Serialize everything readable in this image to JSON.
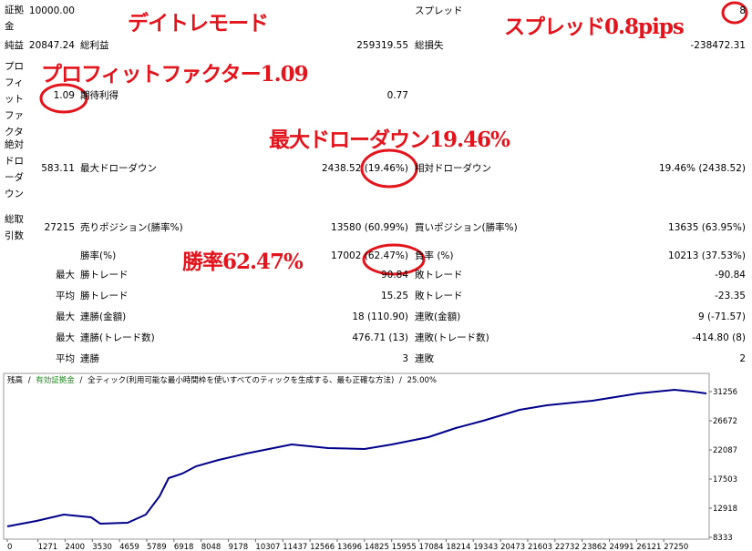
{
  "report": {
    "rows": [
      {
        "cells": [
          "証拠金",
          "10000.00",
          null,
          null,
          "スプレッド",
          "8"
        ]
      },
      {
        "cells": [
          "純益",
          "20847.24",
          "総利益",
          "259319.55",
          "総損失",
          "-238472.31"
        ]
      },
      {
        "cells": [
          "プロフィットファクタ",
          "1.09",
          "期待利得",
          "0.77",
          null,
          null
        ]
      },
      {
        "cells": [
          "絶対ドローダウン",
          "583.11",
          "最大ドローダウン",
          "2438.52 (19.46%)",
          "相対ドローダウン",
          "19.46% (2438.52)"
        ]
      },
      {
        "cells": [
          "総取引数",
          "27215",
          "売りポジション(勝率%)",
          "13580 (60.99%)",
          "買いポジション(勝率%)",
          "13635 (63.95%)"
        ]
      },
      {
        "cells": [
          null,
          null,
          "勝率(%)",
          "17002 (62.47%)",
          "負率 (%)",
          "10213 (37.53%)"
        ]
      },
      {
        "cells": [
          null,
          "最大",
          "勝トレード",
          "90.84",
          "敗トレード",
          "-90.84"
        ]
      },
      {
        "cells": [
          null,
          "平均",
          "勝トレード",
          "15.25",
          "敗トレード",
          "-23.35"
        ]
      },
      {
        "cells": [
          null,
          "最大",
          "連勝(金額)",
          "18 (110.90)",
          "連敗(金額)",
          "9 (-71.57)"
        ]
      },
      {
        "cells": [
          null,
          "最大",
          "連勝(トレード数)",
          "476.71 (13)",
          "連敗(トレード数)",
          "-414.80 (8)"
        ]
      },
      {
        "cells": [
          null,
          "平均",
          "連勝",
          "3",
          "連敗",
          "2"
        ]
      }
    ]
  },
  "annotations": [
    "デイトレモード",
    "スプレッド0.8pips",
    "プロフィットファクター1.09",
    "最大ドローダウン19.46%",
    "勝率62.47%"
  ],
  "chart_data": {
    "type": "line",
    "separator": "/",
    "equity_label": "有効証拠金",
    "mode": "全ティック(利用可能な最小時間枠を使いすべてのティックを生成する、最も正確な方法)",
    "percent": "25.00%",
    "x": [
      0,
      1211,
      2346,
      3481,
      3859,
      4994,
      5751,
      6319,
      6697,
      7264,
      7832,
      8778,
      9913,
      11048,
      11805,
      13318,
      14832,
      15967,
      17480,
      18615,
      19750,
      21264,
      22398,
      24290,
      26182,
      27696,
      28453,
      29020
    ],
    "series": [
      {
        "name": "残高",
        "color": "#00008b",
        "values": [
          10052,
          10912,
          11915,
          11485,
          10482,
          10625,
          11915,
          14780,
          17646,
          18362,
          19508,
          20511,
          21514,
          22373,
          22946,
          22373,
          22230,
          22946,
          24093,
          25525,
          26672,
          28391,
          29107,
          29824,
          30970,
          31543,
          31256,
          30970
        ]
      }
    ],
    "xlim": [
      -113,
      29133
    ],
    "ylim": [
      8046,
      33835
    ],
    "xticks": [
      0,
      1271,
      2400,
      3530,
      4659,
      5789,
      6918,
      8048,
      9178,
      10307,
      11437,
      12566,
      13696,
      14825,
      15955,
      17084,
      18214,
      19343,
      20473,
      21603,
      22732,
      23862,
      24991,
      26121,
      27250
    ],
    "yticks": [
      8333,
      12918,
      17503,
      22087,
      26672,
      31256
    ]
  }
}
